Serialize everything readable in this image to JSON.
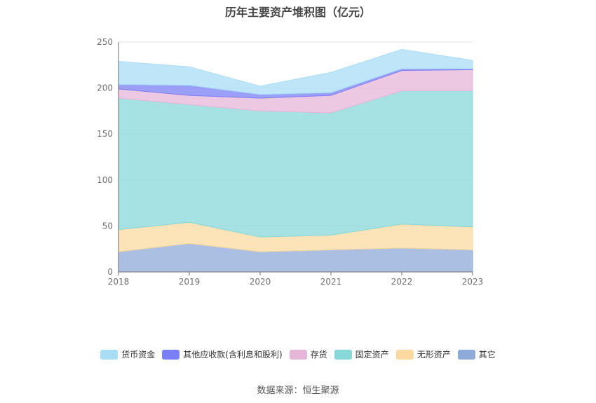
{
  "title": "历年主要资产堆积图（亿元）",
  "source": "数据来源：恒生聚源",
  "chart_data": {
    "type": "area",
    "stacked": true,
    "x": [
      "2018",
      "2019",
      "2020",
      "2021",
      "2022",
      "2023"
    ],
    "ylim": [
      0,
      250
    ],
    "yticks": [
      0,
      50,
      100,
      150,
      200,
      250
    ],
    "grid": true,
    "legend_position": "bottom",
    "series": [
      {
        "name": "货币资金",
        "color": "#a9ddf5",
        "values": [
          25,
          20,
          9,
          22,
          21,
          9
        ]
      },
      {
        "name": "其他应收款(含利息和股利)",
        "color": "#7b7ff5",
        "values": [
          5,
          11,
          4,
          3,
          2,
          1
        ]
      },
      {
        "name": "存货",
        "color": "#e6b6d8",
        "values": [
          10,
          10,
          14,
          19,
          22,
          23
        ]
      },
      {
        "name": "固定资产",
        "color": "#88d8da",
        "values": [
          143,
          128,
          137,
          133,
          145,
          148
        ]
      },
      {
        "name": "无形资产",
        "color": "#fbd9a0",
        "values": [
          24,
          23,
          16,
          16,
          26,
          25
        ]
      },
      {
        "name": "其它",
        "color": "#8eaad8",
        "values": [
          22,
          31,
          22,
          24,
          26,
          24
        ]
      }
    ]
  }
}
